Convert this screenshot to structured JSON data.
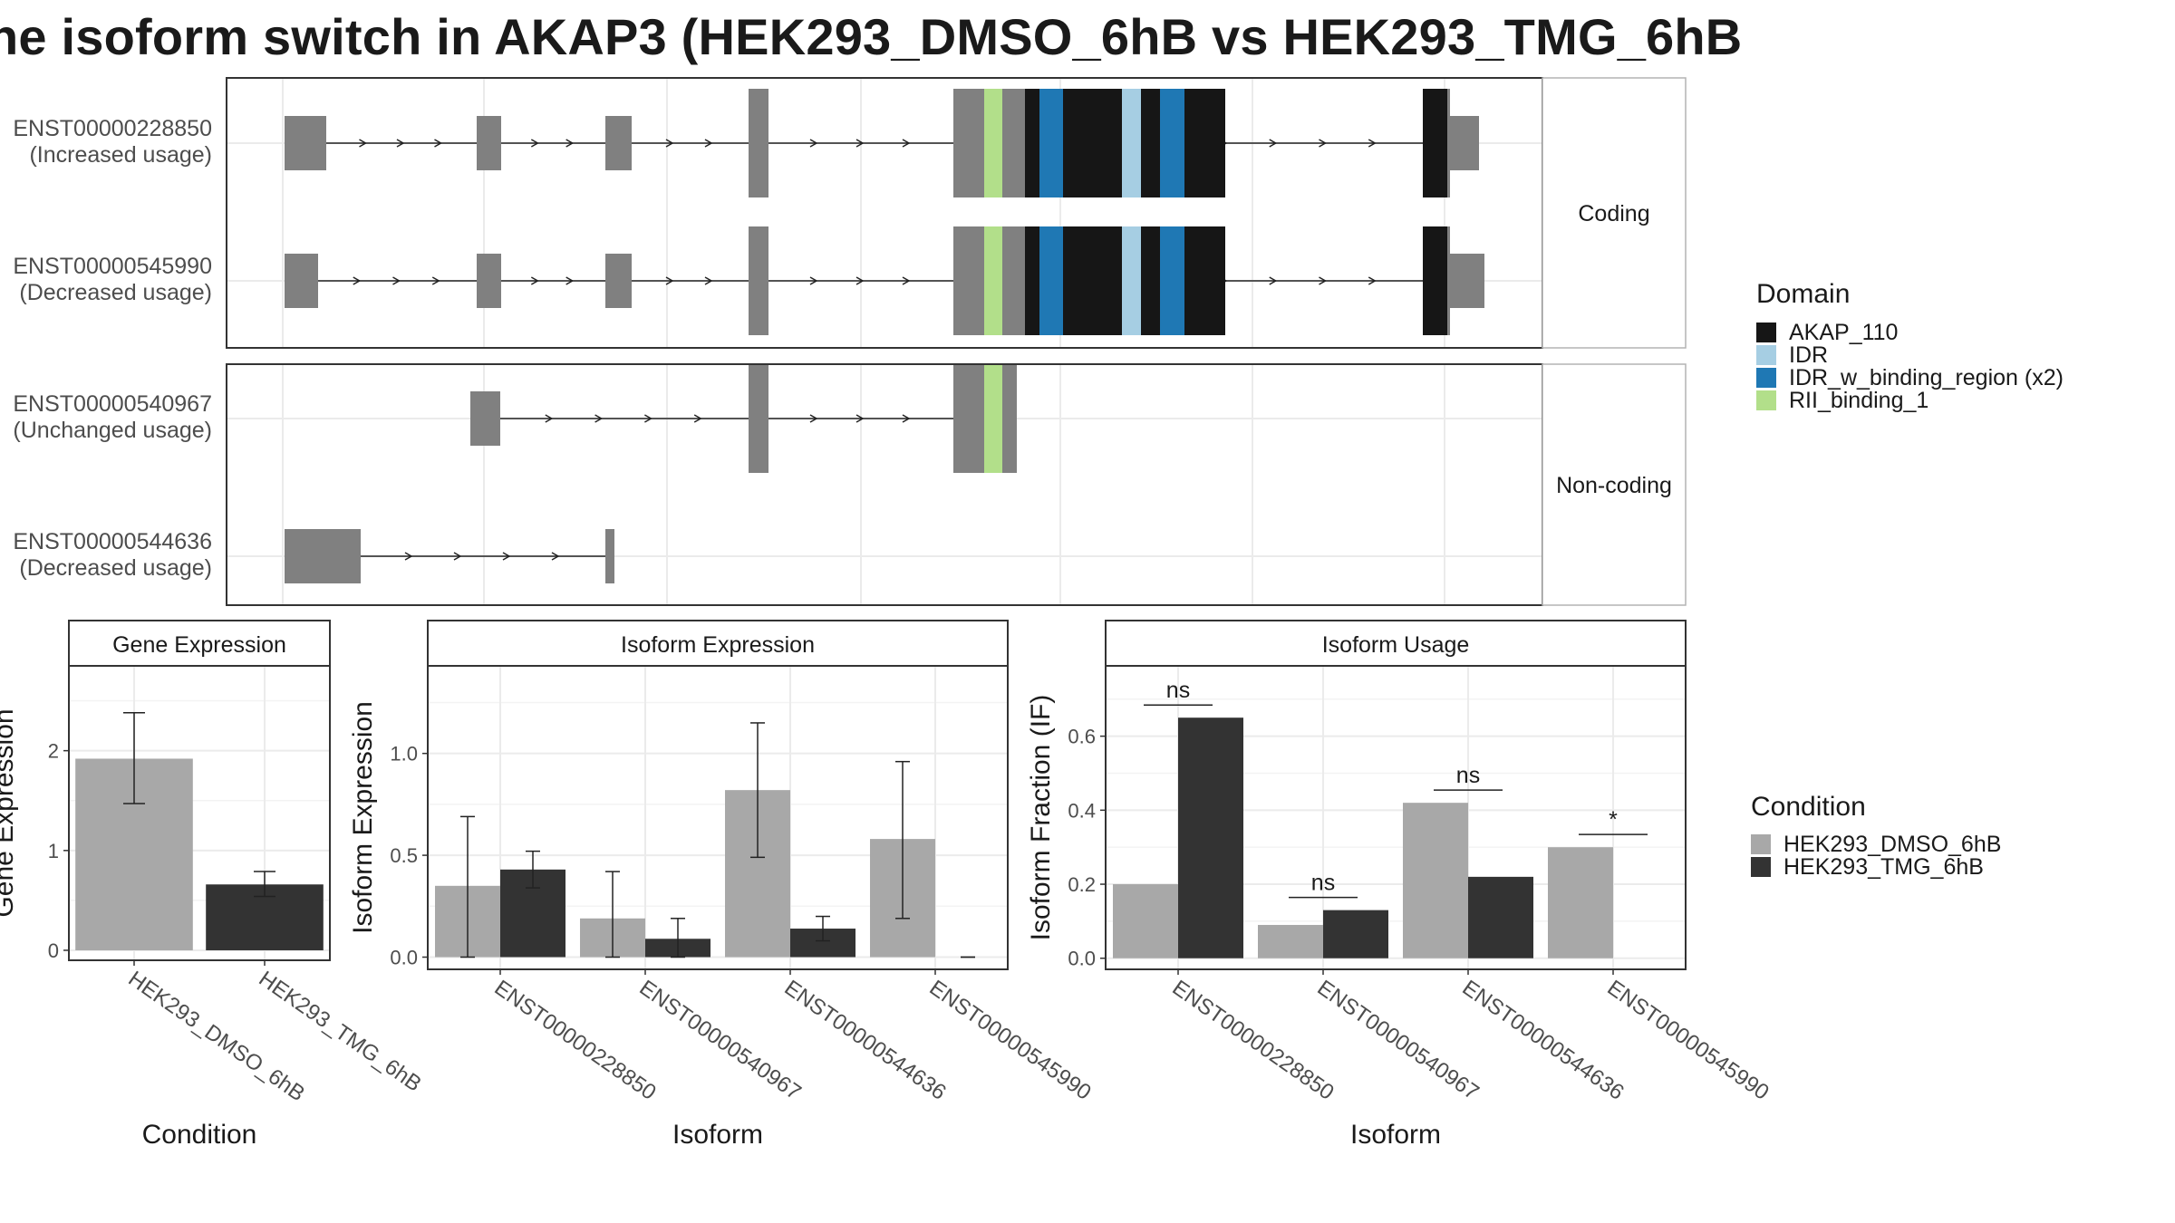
{
  "title": "he isoform switch in AKAP3 (HEK293_DMSO_6hB vs HEK293_TMG_6hB",
  "colors": {
    "exon_gray": "#808080",
    "AKAP_110": "#161616",
    "IDR": "#a6cee3",
    "IDR_w_binding_region": "#1f78b4",
    "RII_binding_1": "#b2df8a",
    "DMSO": "#a8a8a8",
    "TMG": "#333333",
    "grid": "#ebebeb",
    "panel_border": "#333333",
    "strip_border": "#b3b3b3"
  },
  "structure": {
    "facets": [
      {
        "label": "Coding",
        "rows": [
          {
            "id": "ENST00000228850",
            "usage": "(Increased usage)"
          },
          {
            "id": "ENST00000545990",
            "usage": "(Decreased usage)"
          }
        ]
      },
      {
        "label": "Non-coding",
        "rows": [
          {
            "id": "ENST00000540967",
            "usage": "(Unchanged usage)"
          },
          {
            "id": "ENST00000544636",
            "usage": "(Decreased usage)"
          }
        ]
      }
    ],
    "legend_title": "Domain",
    "legend": [
      {
        "label": "AKAP_110",
        "color": "#161616"
      },
      {
        "label": "IDR",
        "color": "#a6cee3"
      },
      {
        "label": "IDR_w_binding_region (x2)",
        "color": "#1f78b4"
      },
      {
        "label": "RII_binding_1",
        "color": "#b2df8a"
      }
    ]
  },
  "chart_data": [
    {
      "type": "bar",
      "title": "Gene Expression",
      "xlabel": "Condition",
      "ylabel": "Gene Expression",
      "categories": [
        "HEK293_DMSO_6hB",
        "HEK293_TMG_6hB"
      ],
      "ticks": [
        0,
        1,
        2
      ],
      "tick_labels": [
        "0",
        "1",
        "2"
      ],
      "values": [
        1.92,
        0.66
      ],
      "errors": [
        [
          1.47,
          2.38
        ],
        [
          0.54,
          0.79
        ]
      ],
      "colors": [
        "#a8a8a8",
        "#333333"
      ],
      "ylim": [
        -0.1,
        2.85
      ]
    },
    {
      "type": "bar",
      "title": "Isoform Expression",
      "xlabel": "Isoform",
      "ylabel": "Isoform Expression",
      "categories": [
        "ENST00000228850",
        "ENST00000540967",
        "ENST00000544636",
        "ENST00000545990"
      ],
      "ticks": [
        0,
        0.5,
        1.0
      ],
      "tick_labels": [
        "0.0",
        "0.5",
        "1.0"
      ],
      "series": [
        {
          "name": "HEK293_DMSO_6hB",
          "values": [
            0.35,
            0.19,
            0.82,
            0.58
          ],
          "errors": [
            [
              0.0,
              0.69
            ],
            [
              0.0,
              0.42
            ],
            [
              0.49,
              1.15
            ],
            [
              0.19,
              0.96
            ]
          ]
        },
        {
          "name": "HEK293_TMG_6hB",
          "values": [
            0.43,
            0.09,
            0.14,
            0.0
          ],
          "errors": [
            [
              0.34,
              0.52
            ],
            [
              0.0,
              0.19
            ],
            [
              0.08,
              0.2
            ],
            [
              0.0,
              0.0
            ]
          ]
        }
      ],
      "ylim": [
        -0.06,
        1.43
      ]
    },
    {
      "type": "bar",
      "title": "Isoform Usage",
      "xlabel": "Isoform",
      "ylabel": "Isoform Fraction (IF)",
      "categories": [
        "ENST00000228850",
        "ENST00000540967",
        "ENST00000544636",
        "ENST00000545990"
      ],
      "ticks": [
        0,
        0.2,
        0.4,
        0.6
      ],
      "tick_labels": [
        "0.0",
        "0.2",
        "0.4",
        "0.6"
      ],
      "series": [
        {
          "name": "HEK293_DMSO_6hB",
          "values": [
            0.2,
            0.09,
            0.42,
            0.3
          ]
        },
        {
          "name": "HEK293_TMG_6hB",
          "values": [
            0.65,
            0.13,
            0.22,
            0.0
          ]
        }
      ],
      "significance": [
        "ns",
        "ns",
        "ns",
        "*"
      ],
      "ylim": [
        -0.03,
        0.79
      ]
    }
  ],
  "condition_legend": {
    "title": "Condition",
    "items": [
      {
        "label": "HEK293_DMSO_6hB",
        "color": "#a8a8a8"
      },
      {
        "label": "HEK293_TMG_6hB",
        "color": "#333333"
      }
    ]
  }
}
